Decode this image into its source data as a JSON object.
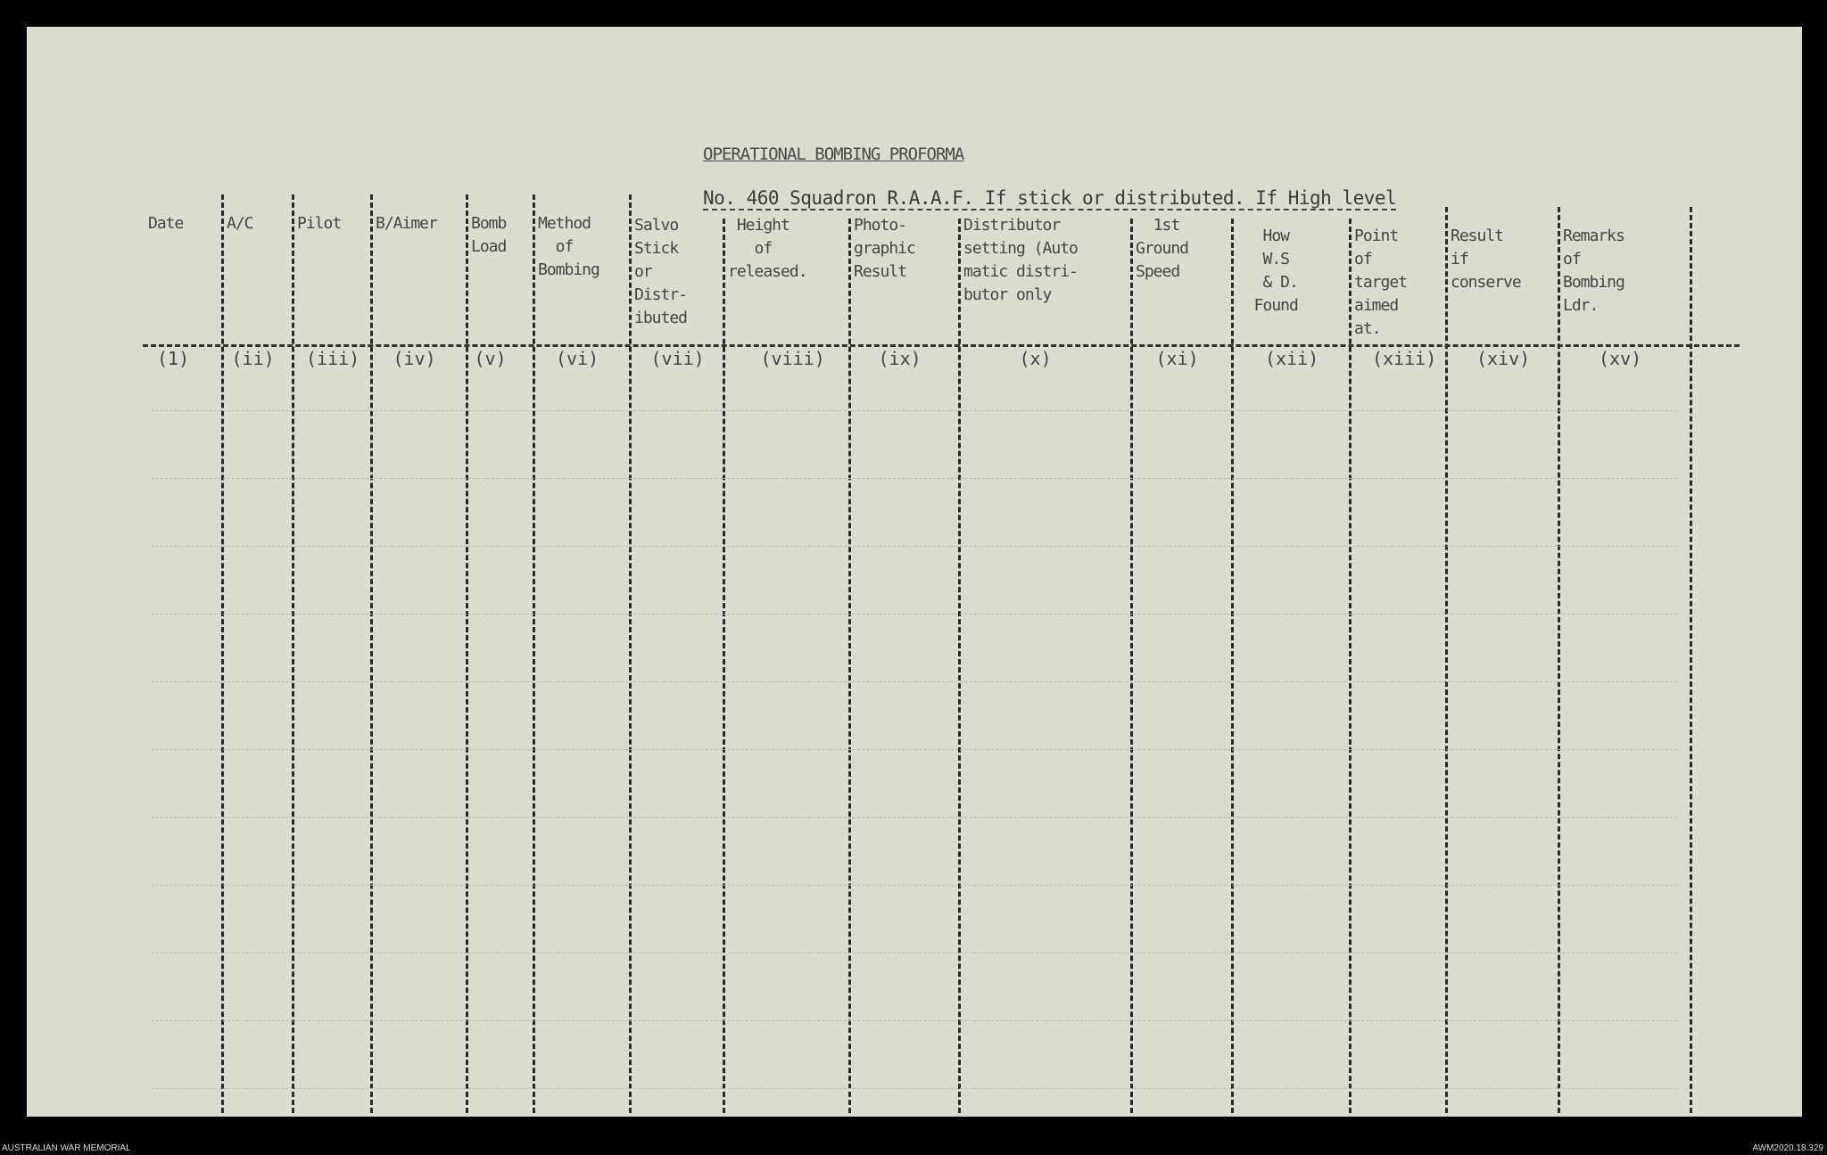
{
  "document": {
    "title": "OPERATIONAL BOMBING PROFORMA",
    "subtitle": "No. 460 Squadron R.A.A.F. If stick or distributed. If High level",
    "columns": [
      {
        "header": "Date",
        "numeral": "(1)"
      },
      {
        "header": "A/C",
        "numeral": "(ii)"
      },
      {
        "header": "Pilot",
        "numeral": "(iii)"
      },
      {
        "header": "B/Aimer",
        "numeral": "(iv)"
      },
      {
        "header": "Bomb\nLoad",
        "numeral": "(v)"
      },
      {
        "header": "Method\n  of\nBombing",
        "numeral": "(vi)"
      },
      {
        "header": "Salvo\nStick\nor\nDistr-\nibuted",
        "numeral": "(vii)"
      },
      {
        "header": " Height\n   of\nreleased.",
        "numeral": "(viii)"
      },
      {
        "header": "Photo-\ngraphic\nResult",
        "numeral": "(ix)"
      },
      {
        "header": "Distributor\nsetting (Auto\nmatic distri-\nbutor only",
        "numeral": "(x)"
      },
      {
        "header": "  1st\nGround\nSpeed",
        "numeral": "(xi)"
      },
      {
        "header": "   How\n   W.S\n   & D.\n  Found",
        "numeral": "(xii)"
      },
      {
        "header": "Point\nof\ntarget\naimed\nat.",
        "numeral": "(xiii)"
      },
      {
        "header": "Result\nif\nconserve",
        "numeral": "(xiv)"
      },
      {
        "header": "Remarks\nof\nBombing\nLdr.",
        "numeral": "(xv)"
      }
    ]
  },
  "footer": {
    "left": "AUSTRALIAN WAR MEMORIAL",
    "right": "AWM2020.18.329"
  },
  "colors": {
    "paper": "#dcdbd0",
    "ink": "#2a2a2a",
    "background": "#000000"
  }
}
